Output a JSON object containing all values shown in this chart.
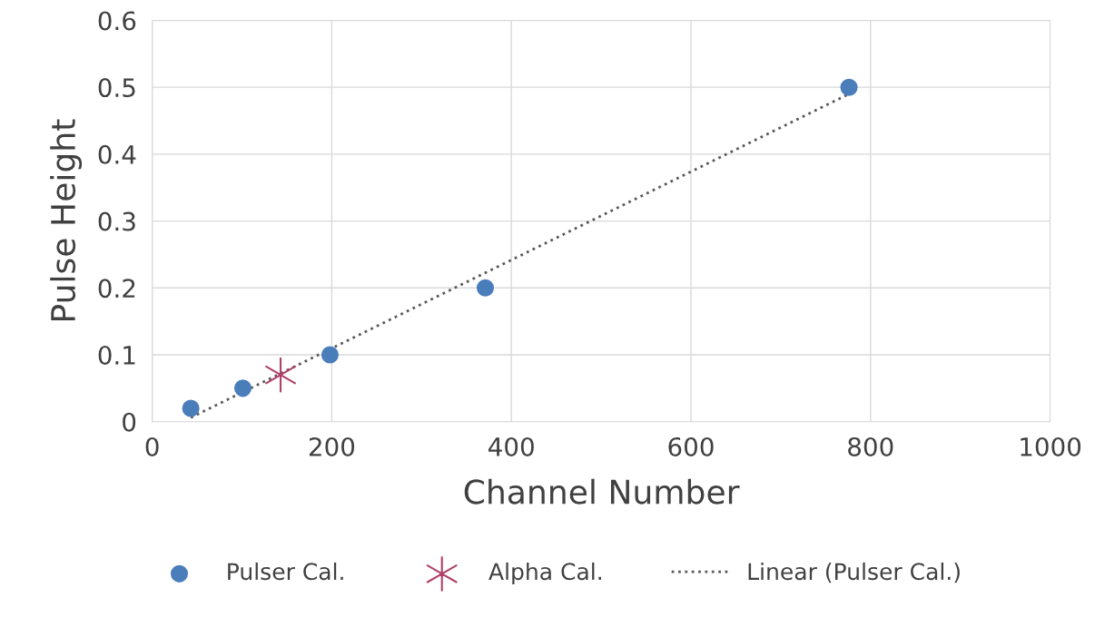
{
  "chart_data": {
    "type": "scatter",
    "xlabel": "Channel Number",
    "ylabel": "Pulse Height",
    "xlim": [
      0,
      1000
    ],
    "xticks": [
      0,
      200,
      400,
      600,
      800,
      1000
    ],
    "ylim": [
      0,
      0.6
    ],
    "yticks": [
      0,
      0.1,
      0.2,
      0.3,
      0.4,
      0.5,
      0.6
    ],
    "grid": true,
    "legend": "bottom",
    "series": [
      {
        "name": "Pulser Cal.",
        "color": "#4a7ebb",
        "marker": "circle",
        "x": [
          43,
          101,
          198,
          371,
          776
        ],
        "values": [
          0.02,
          0.05,
          0.1,
          0.2,
          0.5
        ]
      },
      {
        "name": "Alpha Cal.",
        "color": "#b0406a",
        "marker": "cross",
        "x": [
          143
        ],
        "values": [
          0.07
        ]
      },
      {
        "name": "Linear (Pulser Cal.)",
        "type": "line",
        "color": "#595959",
        "line_style": "dotted",
        "marker": "none",
        "x": [
          43,
          776
        ],
        "values": [
          0.006,
          0.49
        ]
      }
    ]
  }
}
